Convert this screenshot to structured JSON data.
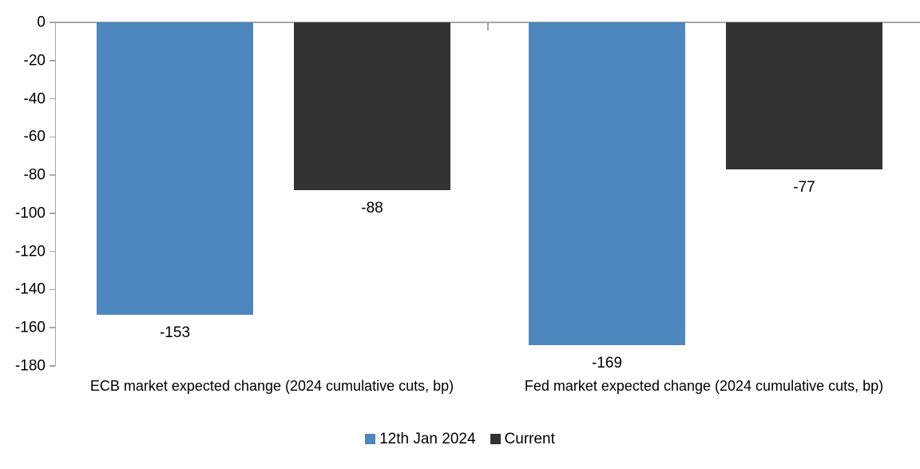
{
  "chart_data": {
    "type": "bar",
    "categories": [
      "ECB market expected change (2024 cumulative cuts, bp)",
      "Fed market expected change (2024 cumulative cuts, bp)"
    ],
    "series": [
      {
        "name": "12th Jan 2024",
        "color": "#4E86BE",
        "values": [
          -153,
          -169
        ]
      },
      {
        "name": "Current",
        "color": "#333333",
        "values": [
          -88,
          -77
        ]
      }
    ],
    "data_labels": {
      "series_0": [
        "-153",
        "-169"
      ],
      "series_1": [
        "-88",
        "-77"
      ]
    },
    "title": "",
    "xlabel": "",
    "ylabel": "",
    "ylim": [
      0,
      -180
    ],
    "yticks": [
      0,
      -20,
      -40,
      -60,
      -80,
      -100,
      -120,
      -140,
      -160,
      -180
    ],
    "grid": false,
    "legend_position": "bottom",
    "axis_color": "#A6A6A6",
    "text_color": "#000000"
  }
}
